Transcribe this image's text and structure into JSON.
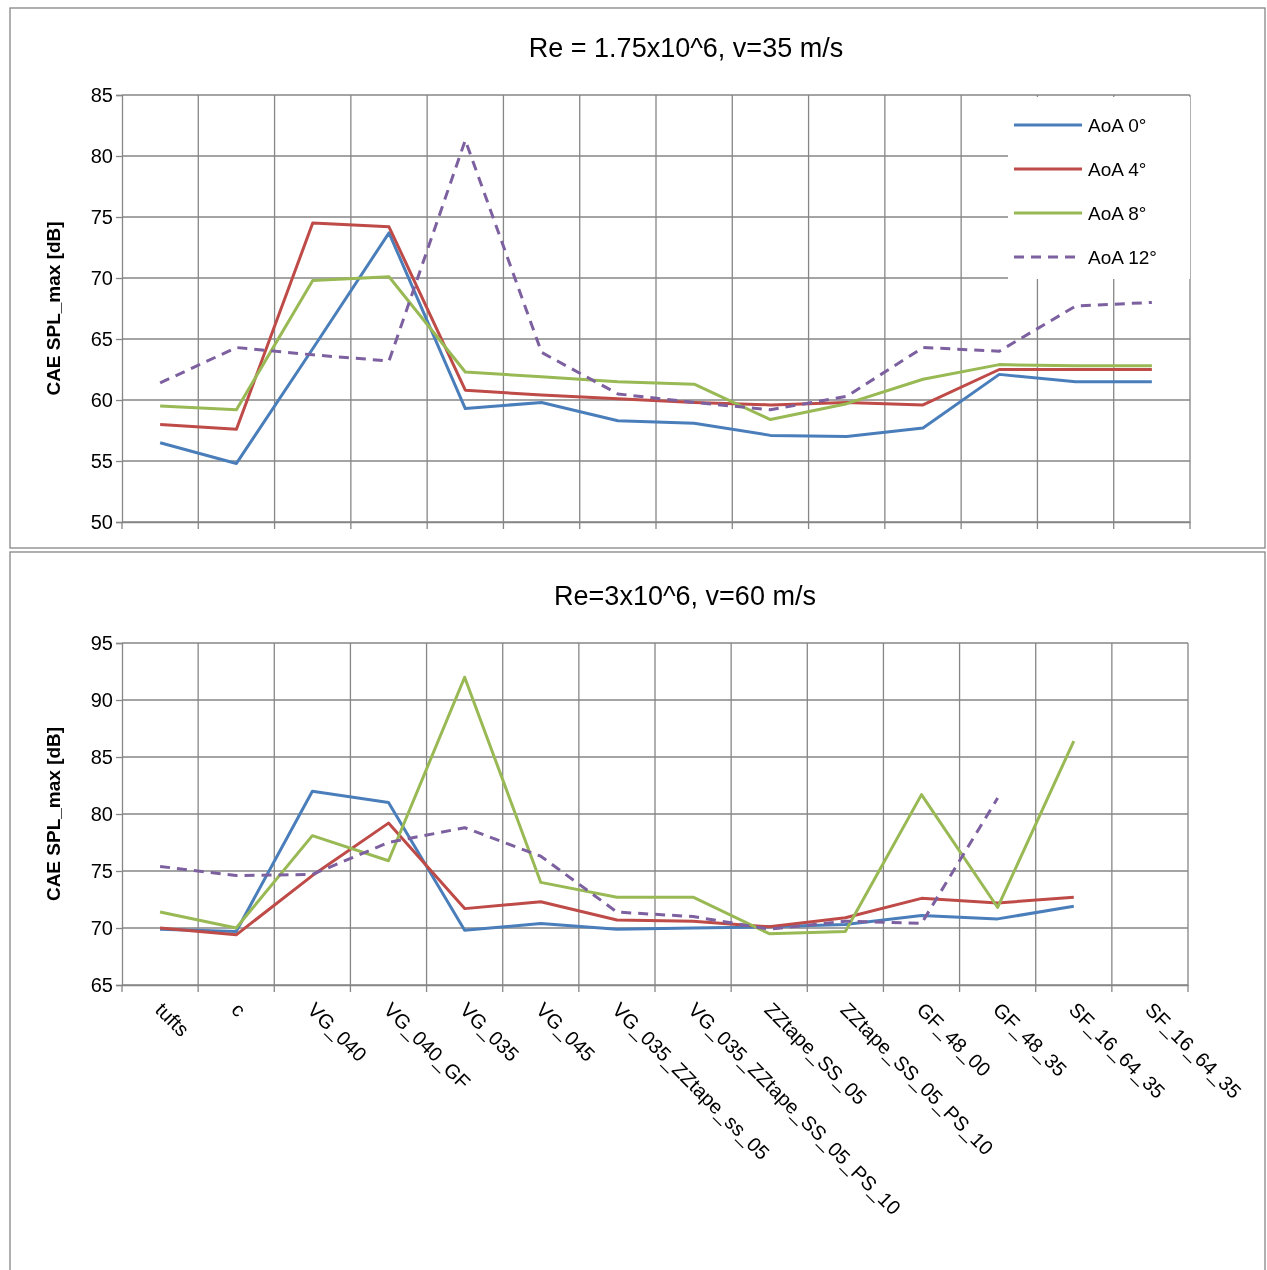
{
  "chart_data": [
    {
      "type": "line",
      "title": "Re = 1.75x10^6, v=35 m/s",
      "ylabel": "CAE SPL_max [dB]",
      "categories": [
        null,
        null,
        null,
        null,
        null,
        null,
        null,
        null,
        null,
        null,
        null,
        null,
        null,
        null
      ],
      "series": [
        {
          "name": "AoA 0°",
          "color": "#4a7ebb",
          "values": [
            56.5,
            54.8,
            64.2,
            73.7,
            59.3,
            59.8,
            58.3,
            58.1,
            57.1,
            57.0,
            57.7,
            62.1,
            61.5,
            61.5
          ]
        },
        {
          "name": "AoA 4°",
          "color": "#be4b48",
          "values": [
            58.0,
            57.6,
            74.5,
            74.2,
            60.8,
            60.4,
            60.1,
            59.8,
            59.6,
            59.8,
            59.6,
            62.5,
            62.5,
            62.5
          ]
        },
        {
          "name": "AoA 8°",
          "color": "#98b954",
          "values": [
            59.5,
            59.2,
            69.8,
            70.1,
            62.3,
            61.9,
            61.5,
            61.3,
            58.4,
            59.7,
            61.7,
            62.9,
            62.8,
            62.8
          ]
        },
        {
          "name": "AoA 12°",
          "color": "#7d60a0",
          "line_style": "dashed",
          "values": [
            61.4,
            64.3,
            63.7,
            63.2,
            81.3,
            63.9,
            60.5,
            59.8,
            59.2,
            60.3,
            64.3,
            64.0,
            67.7,
            68.0
          ]
        }
      ],
      "ylim": [
        50,
        85
      ],
      "yticks": [
        50,
        55,
        60,
        65,
        70,
        75,
        80,
        85
      ],
      "grid": true,
      "legend": "top right",
      "marker": "none"
    },
    {
      "type": "line",
      "title": "Re=3x10^6, v=60 m/s",
      "ylabel": "CAE SPL_max [dB]",
      "categories": [
        "tufts",
        "c",
        "VG_040",
        "VG_040_GF",
        "VG_035",
        "VG_045",
        "VG_035_ZZtape_ss_05",
        "VG_035_ZZtape_SS_05_PS_10",
        "ZZtape_SS_05",
        "ZZtape_SS_05_PS_10",
        "GF_48_00",
        "GF_48_35",
        "SF_16_64_35",
        "SF_16_64_35"
      ],
      "series": [
        {
          "color": "#4a7ebb",
          "values": [
            69.9,
            69.7,
            82.0,
            81.0,
            69.8,
            70.4,
            69.9,
            70.0,
            70.1,
            70.3,
            71.1,
            70.8,
            71.9,
            null
          ]
        },
        {
          "color": "#be4b48",
          "values": [
            70.0,
            69.4,
            74.6,
            79.2,
            71.7,
            72.3,
            70.7,
            70.6,
            70.1,
            70.9,
            72.6,
            72.2,
            72.7,
            null
          ]
        },
        {
          "color": "#98b954",
          "values": [
            71.4,
            70.0,
            78.1,
            75.9,
            92.0,
            74.0,
            72.7,
            72.7,
            69.5,
            69.7,
            81.7,
            71.8,
            86.4,
            null
          ]
        },
        {
          "color": "#7d60a0",
          "line_style": "dashed",
          "values": [
            75.4,
            74.6,
            74.7,
            77.5,
            78.8,
            76.3,
            71.4,
            71.0,
            69.9,
            70.6,
            70.4,
            81.4,
            null,
            null
          ]
        }
      ],
      "ylim": [
        65,
        95
      ],
      "yticks": [
        65,
        70,
        75,
        80,
        85,
        90,
        95
      ],
      "grid": true,
      "legend": false,
      "marker": "none"
    }
  ]
}
